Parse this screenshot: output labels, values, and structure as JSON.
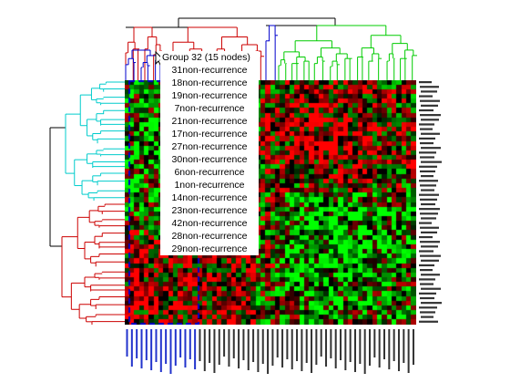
{
  "tooltip": {
    "title": "Group 32  (15 nodes)",
    "items": [
      "31non-recurrence",
      "18non-recurrence",
      "19non-recurrence",
      "7non-recurrence",
      "21non-recurrence",
      "17non-recurrence",
      "27non-recurrence",
      "30non-recurrence",
      "6non-recurrence",
      "1non-recurrence",
      "14non-recurrence",
      "23non-recurrence",
      "42non-recurrence",
      "28non-recurrence",
      "29non-recurrence"
    ]
  },
  "heatmap": {
    "rows": 52,
    "cols": 60,
    "highlight_group_cols": 15,
    "colors": {
      "high": "#ff0000",
      "low": "#00ff00",
      "mid": "#000000"
    }
  },
  "dendrogram_colors": {
    "top": "#000000",
    "red": "#cc0000",
    "blue": "#0000cc",
    "green": "#00cc00",
    "cyan": "#00cccc",
    "selection": "#0000cc"
  }
}
